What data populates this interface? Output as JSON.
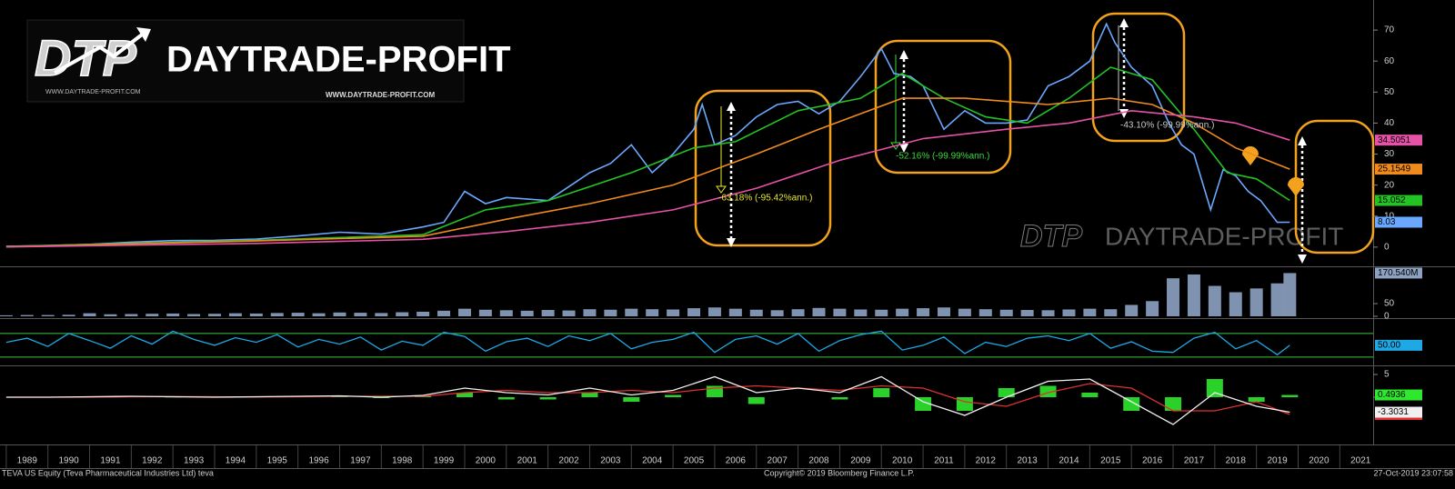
{
  "logo": {
    "mark": "DTP",
    "name": "DAYTRADE-PROFIT",
    "urls": [
      "WWW.DAYTRADE-PROFIT.COM",
      "WWW.DAYTRADE-PROFIT.COM"
    ]
  },
  "watermark": {
    "mark": "DTP",
    "name": "DAYTRADE-PROFIT"
  },
  "footer": {
    "left": "TEVA US Equity (Teva Pharmaceutical Industries Ltd) teva",
    "center": "Copyright© 2019 Bloomberg Finance L.P.",
    "right": "27-Oct-2019 23:07:58"
  },
  "chart_data": [
    {
      "type": "line",
      "xlim": [
        1988.85,
        2021.8
      ],
      "ylim": [
        -5.9,
        79.7
      ],
      "yticks": [
        0,
        10,
        20,
        30,
        40,
        50,
        60,
        70
      ],
      "x": [
        1989,
        1990,
        1991,
        1992,
        1993,
        1994,
        1995,
        1996,
        1997,
        1998,
        1999,
        1999.5,
        2000,
        2000.5,
        2001,
        2002,
        2003,
        2003.5,
        2004,
        2004.5,
        2005,
        2005.5,
        2005.7,
        2006,
        2006.5,
        2007,
        2007.5,
        2008,
        2008.5,
        2009,
        2009.5,
        2010,
        2010.3,
        2010.7,
        2011,
        2011.5,
        2012,
        2012.5,
        2013,
        2013.5,
        2014,
        2014.5,
        2015,
        2015.4,
        2015.6,
        2016,
        2016.5,
        2016.9,
        2017.2,
        2017.5,
        2017.9,
        2018.2,
        2018.5,
        2018.8,
        2019.1,
        2019.5,
        2019.8
      ],
      "series": [
        {
          "color": "#6aa8ff",
          "values": [
            0.3,
            0.5,
            0.9,
            1.6,
            2.1,
            2.2,
            2.6,
            3.6,
            4.8,
            4.2,
            6.5,
            8,
            18,
            14,
            16,
            15,
            24,
            27,
            33,
            24,
            30,
            38,
            46,
            33,
            36,
            42,
            46,
            47,
            43,
            47,
            55,
            64,
            56,
            55,
            52,
            38,
            44,
            40,
            40,
            41,
            52,
            55,
            60,
            72,
            66,
            58,
            52,
            40,
            33,
            30,
            12,
            25,
            23,
            18,
            15,
            8,
            8.03
          ]
        },
        {
          "color": "#22c322",
          "x": [
            1989,
            1995,
            1999,
            2000.5,
            2002,
            2004,
            2005.5,
            2006.5,
            2008,
            2009.5,
            2010.5,
            2011.5,
            2012.5,
            2013.5,
            2014.5,
            2015.5,
            2016.5,
            2017.5,
            2018.3,
            2019,
            2019.8
          ],
          "values": [
            0.2,
            2.2,
            4,
            12,
            15,
            24,
            32,
            34,
            44,
            48,
            56,
            48,
            42,
            40,
            48,
            58,
            54,
            38,
            24,
            22,
            15.052
          ]
        },
        {
          "color": "#f08a1c",
          "x": [
            1989,
            1995,
            1999,
            2001,
            2003,
            2005,
            2007,
            2008.5,
            2010.5,
            2012,
            2014,
            2015.5,
            2016.5,
            2017.5,
            2018.5,
            2019.8
          ],
          "values": [
            0.1,
            2,
            3.5,
            9,
            14,
            20,
            30,
            38,
            48,
            48,
            46,
            48,
            46,
            40,
            32,
            25.1549
          ]
        },
        {
          "color": "#e652a8",
          "x": [
            1989,
            1995,
            1999,
            2001,
            2003,
            2005,
            2007,
            2009,
            2011,
            2013,
            2014.5,
            2016,
            2017.5,
            2018.5,
            2019.8
          ],
          "values": [
            0.05,
            1.2,
            2.5,
            5,
            8,
            12,
            19,
            28,
            35,
            38,
            40,
            44,
            42,
            40,
            34.5051
          ]
        }
      ],
      "annotations": [
        {
          "text": "-63.18% (-95.42%ann.)",
          "color": "#e8e82a"
        },
        {
          "text": "-52.16% (-99.99%ann.)",
          "color": "#3cd83c"
        },
        {
          "text": "-43.10% (-99.99%ann.)",
          "color": "#c8c8c8"
        }
      ]
    },
    {
      "type": "bar",
      "xlim": [
        1988.85,
        2021.8
      ],
      "ylim": [
        0,
        190
      ],
      "yticks": [
        0,
        50
      ],
      "color": "#8da2c2",
      "x": [
        1989,
        1989.5,
        1990,
        1990.5,
        1991,
        1991.5,
        1992,
        1992.5,
        1993,
        1993.5,
        1994,
        1994.5,
        1995,
        1995.5,
        1996,
        1996.5,
        1997,
        1997.5,
        1998,
        1998.5,
        1999,
        1999.5,
        2000,
        2000.5,
        2001,
        2001.5,
        2002,
        2002.5,
        2003,
        2003.5,
        2004,
        2004.5,
        2005,
        2005.5,
        2006,
        2006.5,
        2007,
        2007.5,
        2008,
        2008.5,
        2009,
        2009.5,
        2010,
        2010.5,
        2011,
        2011.5,
        2012,
        2012.5,
        2013,
        2013.5,
        2014,
        2014.5,
        2015,
        2015.5,
        2016,
        2016.5,
        2017,
        2017.5,
        2018,
        2018.5,
        2019,
        2019.5,
        2019.8
      ],
      "values": [
        4,
        5,
        5,
        6,
        12,
        8,
        9,
        10,
        11,
        9,
        10,
        12,
        11,
        13,
        14,
        12,
        15,
        14,
        13,
        16,
        18,
        22,
        30,
        26,
        24,
        22,
        25,
        23,
        28,
        26,
        30,
        28,
        27,
        32,
        35,
        30,
        26,
        24,
        28,
        33,
        30,
        27,
        26,
        30,
        32,
        35,
        30,
        28,
        26,
        25,
        24,
        27,
        30,
        28,
        45,
        60,
        150,
        165,
        120,
        95,
        110,
        130,
        170.54
      ],
      "value_labels": [
        null,
        null,
        null,
        null,
        null,
        null,
        null,
        null,
        null,
        null,
        null,
        null,
        null,
        null,
        null,
        null,
        null,
        null,
        null,
        null,
        null,
        null,
        null,
        null,
        null,
        null,
        null,
        null,
        null,
        null,
        null,
        null,
        null,
        null,
        null,
        null,
        null,
        null,
        null,
        null,
        null,
        null,
        null,
        null,
        null,
        null,
        null,
        null,
        null,
        null,
        null,
        null,
        null,
        null,
        null,
        null,
        null,
        null,
        null,
        null,
        null,
        null,
        "170.540M"
      ]
    },
    {
      "type": "line",
      "xlim": [
        1988.85,
        2021.8
      ],
      "ylim": [
        19,
        93
      ],
      "hlines": [
        30,
        70
      ],
      "color": "#1ea8e6",
      "x": [
        1989,
        1989.5,
        1990,
        1990.5,
        1991,
        1991.5,
        1992,
        1992.5,
        1993,
        1993.5,
        1994,
        1994.5,
        1995,
        1995.5,
        1996,
        1996.5,
        1997,
        1997.5,
        1998,
        1998.5,
        1999,
        1999.5,
        2000,
        2000.5,
        2001,
        2001.5,
        2002,
        2002.5,
        2003,
        2003.5,
        2004,
        2004.5,
        2005,
        2005.5,
        2006,
        2006.5,
        2007,
        2007.5,
        2008,
        2008.5,
        2009,
        2009.5,
        2010,
        2010.5,
        2011,
        2011.5,
        2012,
        2012.5,
        2013,
        2013.5,
        2014,
        2014.5,
        2015,
        2015.5,
        2016,
        2016.5,
        2017,
        2017.5,
        2018,
        2018.5,
        2019,
        2019.5,
        2019.8
      ],
      "values": [
        55,
        62,
        48,
        70,
        58,
        45,
        66,
        52,
        74,
        60,
        50,
        63,
        55,
        68,
        47,
        60,
        52,
        64,
        42,
        57,
        50,
        72,
        65,
        40,
        56,
        62,
        48,
        66,
        58,
        70,
        44,
        55,
        60,
        72,
        38,
        60,
        66,
        52,
        70,
        40,
        58,
        68,
        74,
        42,
        50,
        64,
        36,
        55,
        48,
        62,
        66,
        58,
        70,
        45,
        56,
        40,
        38,
        62,
        72,
        44,
        58,
        34,
        50
      ],
      "value_labels": [
        null,
        null,
        null,
        null,
        null,
        null,
        null,
        null,
        null,
        null,
        null,
        null,
        null,
        null,
        null,
        null,
        null,
        null,
        null,
        null,
        null,
        null,
        null,
        null,
        null,
        null,
        null,
        null,
        null,
        null,
        null,
        null,
        null,
        null,
        null,
        null,
        null,
        null,
        null,
        null,
        null,
        null,
        null,
        null,
        null,
        null,
        null,
        null,
        null,
        null,
        null,
        null,
        null,
        null,
        null,
        null,
        null,
        null,
        null,
        null,
        null,
        null,
        "50.00"
      ]
    },
    {
      "type": "line",
      "xlim": [
        1988.85,
        2021.8
      ],
      "ylim": [
        -10.2,
        6.6
      ],
      "yticks": [
        0,
        5
      ],
      "xticks": [
        1989,
        1990,
        1991,
        1992,
        1993,
        1994,
        1995,
        1996,
        1997,
        1998,
        1999,
        2000,
        2001,
        2002,
        2003,
        2004,
        2005,
        2006,
        2007,
        2008,
        2009,
        2010,
        2011,
        2012,
        2013,
        2014,
        2015,
        2016,
        2017,
        2018,
        2019,
        2020,
        2021
      ],
      "x": [
        1989,
        1990,
        1991,
        1992,
        1993,
        1994,
        1995,
        1996,
        1997,
        1998,
        1999,
        2000,
        2001,
        2002,
        2003,
        2004,
        2005,
        2006,
        2007,
        2008,
        2009,
        2010,
        2011,
        2012,
        2013,
        2014,
        2015,
        2016,
        2017,
        2018,
        2019,
        2019.8
      ],
      "series": [
        {
          "type": "bar",
          "color": "#2ee82e",
          "values": [
            0,
            0,
            0.1,
            0.1,
            -0.05,
            -0.1,
            0.05,
            0.1,
            0.1,
            -0.2,
            0.2,
            1,
            -0.5,
            -0.5,
            1,
            -1,
            0.5,
            2.5,
            -1.5,
            0,
            -0.5,
            2,
            -3,
            -3,
            2,
            2.5,
            1,
            -3,
            -3,
            4,
            -1,
            0.4936
          ]
        },
        {
          "color": "#e03030",
          "values": [
            0,
            0,
            0,
            0.1,
            0.15,
            0.1,
            0.05,
            0.1,
            0.2,
            0.2,
            0.2,
            1,
            1.5,
            1,
            1,
            1.5,
            1,
            2,
            2.5,
            2,
            1.5,
            2.5,
            2,
            -1,
            -2,
            1,
            3,
            2,
            -3,
            -3,
            -1,
            -3.8
          ]
        },
        {
          "color": "#f0f0f0",
          "values": [
            0,
            0,
            0.1,
            0.2,
            0.1,
            0,
            0.1,
            0.2,
            0.3,
            0,
            0.4,
            2,
            1,
            0.5,
            2,
            0.5,
            1.5,
            4.5,
            1,
            2,
            1,
            4.5,
            -1,
            -4,
            0,
            3.5,
            4,
            -1,
            -6,
            1,
            -2,
            -3.3031
          ]
        }
      ]
    }
  ]
}
